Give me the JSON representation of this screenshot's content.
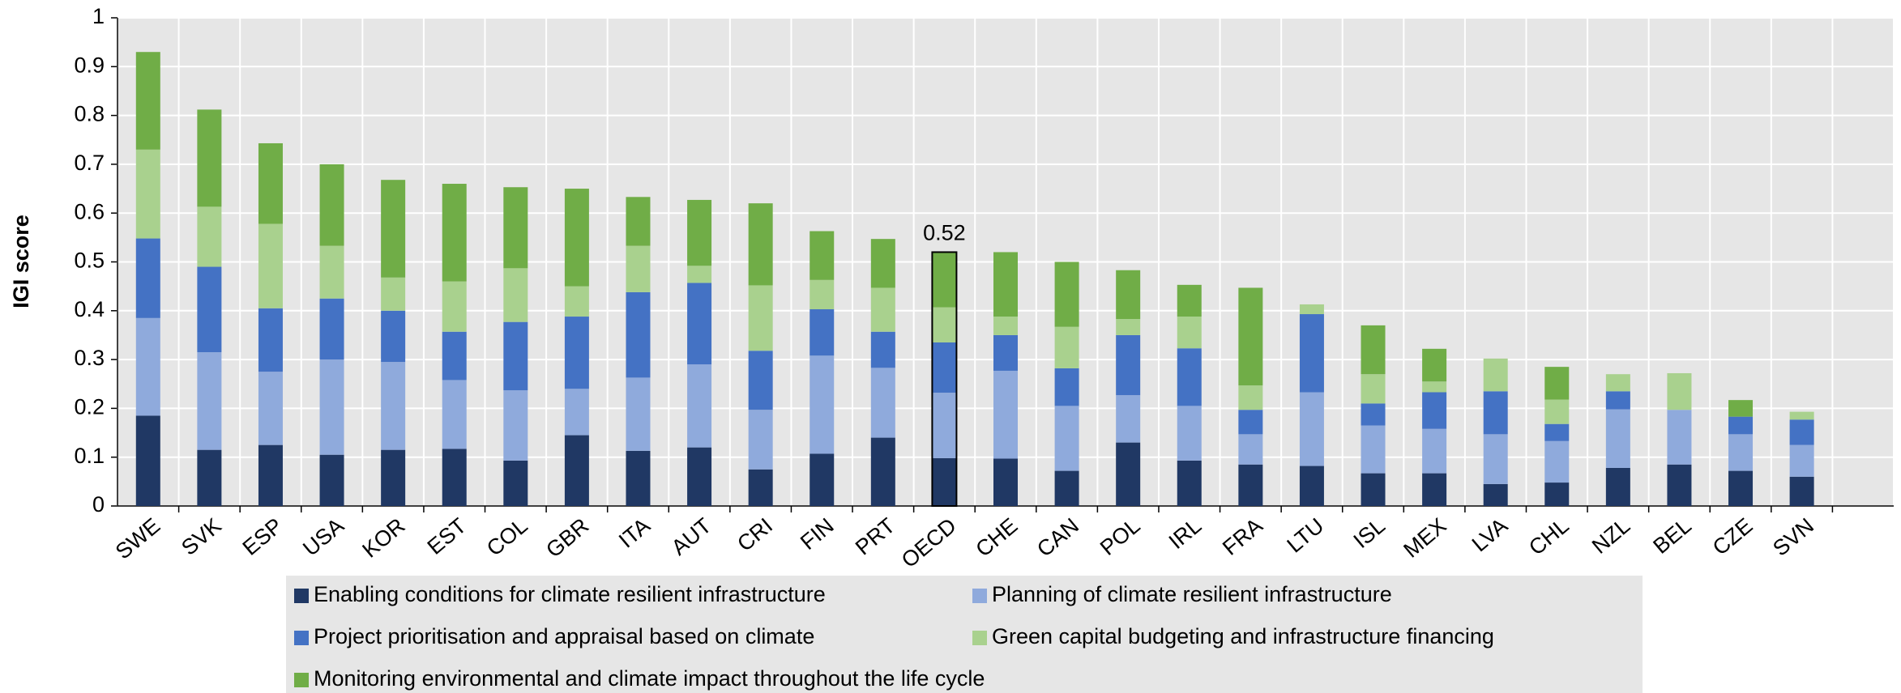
{
  "chart_data": {
    "type": "stacked_bar",
    "y_label": "IGI score",
    "categories": [
      "SWE",
      "SVK",
      "ESP",
      "USA",
      "KOR",
      "EST",
      "COL",
      "GBR",
      "ITA",
      "AUT",
      "CRI",
      "FIN",
      "PRT",
      "OECD",
      "CHE",
      "CAN",
      "POL",
      "IRL",
      "FRA",
      "LTU",
      "ISL",
      "MEX",
      "LVA",
      "CHL",
      "NZL",
      "BEL",
      "CZE",
      "SVN"
    ],
    "series": [
      {
        "name": "Enabling conditions for climate resilient infrastructure",
        "color": "#203864",
        "values": [
          0.185,
          0.115,
          0.125,
          0.105,
          0.115,
          0.117,
          0.093,
          0.145,
          0.113,
          0.12,
          0.075,
          0.107,
          0.14,
          0.098,
          0.097,
          0.072,
          0.13,
          0.093,
          0.085,
          0.082,
          0.067,
          0.067,
          0.045,
          0.048,
          0.078,
          0.085,
          0.072,
          0.06
        ]
      },
      {
        "name": "Planning of climate resilient infrastructure",
        "color": "#8faadc",
        "values": [
          0.2,
          0.2,
          0.15,
          0.195,
          0.18,
          0.141,
          0.144,
          0.095,
          0.15,
          0.17,
          0.122,
          0.201,
          0.143,
          0.134,
          0.18,
          0.133,
          0.097,
          0.112,
          0.062,
          0.151,
          0.098,
          0.091,
          0.102,
          0.085,
          0.12,
          0.112,
          0.075,
          0.065
        ]
      },
      {
        "name": "Project prioritisation and appraisal based on climate",
        "color": "#4472c4",
        "values": [
          0.163,
          0.175,
          0.13,
          0.125,
          0.105,
          0.099,
          0.14,
          0.148,
          0.175,
          0.167,
          0.121,
          0.095,
          0.074,
          0.103,
          0.073,
          0.077,
          0.123,
          0.118,
          0.05,
          0.16,
          0.045,
          0.075,
          0.088,
          0.035,
          0.037,
          0,
          0.036,
          0.052
        ]
      },
      {
        "name": "Green capital budgeting and infrastructure financing",
        "color": "#a9d18e",
        "values": [
          0.182,
          0.123,
          0.173,
          0.108,
          0.068,
          0.103,
          0.11,
          0.062,
          0.095,
          0.035,
          0.134,
          0.06,
          0.09,
          0.072,
          0.038,
          0.085,
          0.033,
          0.065,
          0.05,
          0.02,
          0.06,
          0.022,
          0.067,
          0.05,
          0.035,
          0.075,
          0,
          0.016
        ]
      },
      {
        "name": "Monitoring environmental and climate impact throughout the life cycle",
        "color": "#70ad47",
        "values": [
          0.2,
          0.199,
          0.165,
          0.167,
          0.2,
          0.2,
          0.166,
          0.2,
          0.1,
          0.135,
          0.168,
          0.1,
          0.1,
          0.113,
          0.132,
          0.133,
          0.1,
          0.065,
          0.2,
          0,
          0.1,
          0.067,
          0,
          0.067,
          0,
          0,
          0.034,
          0
        ]
      }
    ],
    "annotations": [
      {
        "text": "0.52",
        "value": 0.52,
        "category": "OECD"
      }
    ],
    "ylim": [
      0,
      1
    ],
    "yticks": [
      0,
      0.1,
      0.2,
      0.3,
      0.4,
      0.5,
      0.6,
      0.7,
      0.8,
      0.9,
      1
    ],
    "grid": true,
    "legend": "bottom"
  }
}
